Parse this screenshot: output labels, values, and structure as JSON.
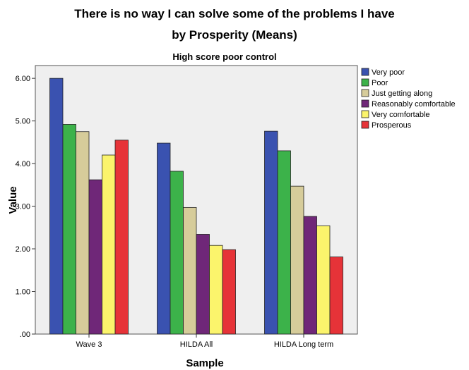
{
  "chart_data": {
    "type": "bar",
    "title_line1": "There is no way I can solve some of the problems I have",
    "title_line2": "by Prosperity (Means)",
    "subtitle": "High score poor control",
    "xlabel": "Sample",
    "ylabel": "Value",
    "ylim": [
      0,
      6.3
    ],
    "yticks": [
      0,
      1,
      2,
      3,
      4,
      5,
      6
    ],
    "ytick_labels": [
      ".00",
      "1.00",
      "2.00",
      "3.00",
      "4.00",
      "5.00",
      "6.00"
    ],
    "grid": false,
    "legend_position": "right",
    "categories": [
      "Wave 3",
      "HILDA All",
      "HILDA Long term"
    ],
    "series": [
      {
        "name": "Very poor",
        "color": "#3a52b0",
        "values": [
          6.0,
          4.48,
          4.76
        ]
      },
      {
        "name": "Poor",
        "color": "#3cb24a",
        "values": [
          4.92,
          3.82,
          4.3
        ]
      },
      {
        "name": "Just getting along",
        "color": "#d6cc9a",
        "values": [
          4.75,
          2.97,
          3.47
        ]
      },
      {
        "name": "Reasonably comfortable",
        "color": "#6f2778",
        "values": [
          3.62,
          2.34,
          2.76
        ]
      },
      {
        "name": "Very comfortable",
        "color": "#fbf46c",
        "values": [
          4.2,
          2.08,
          2.54
        ]
      },
      {
        "name": "Prosperous",
        "color": "#e63338",
        "values": [
          4.55,
          1.98,
          1.81
        ]
      }
    ]
  }
}
